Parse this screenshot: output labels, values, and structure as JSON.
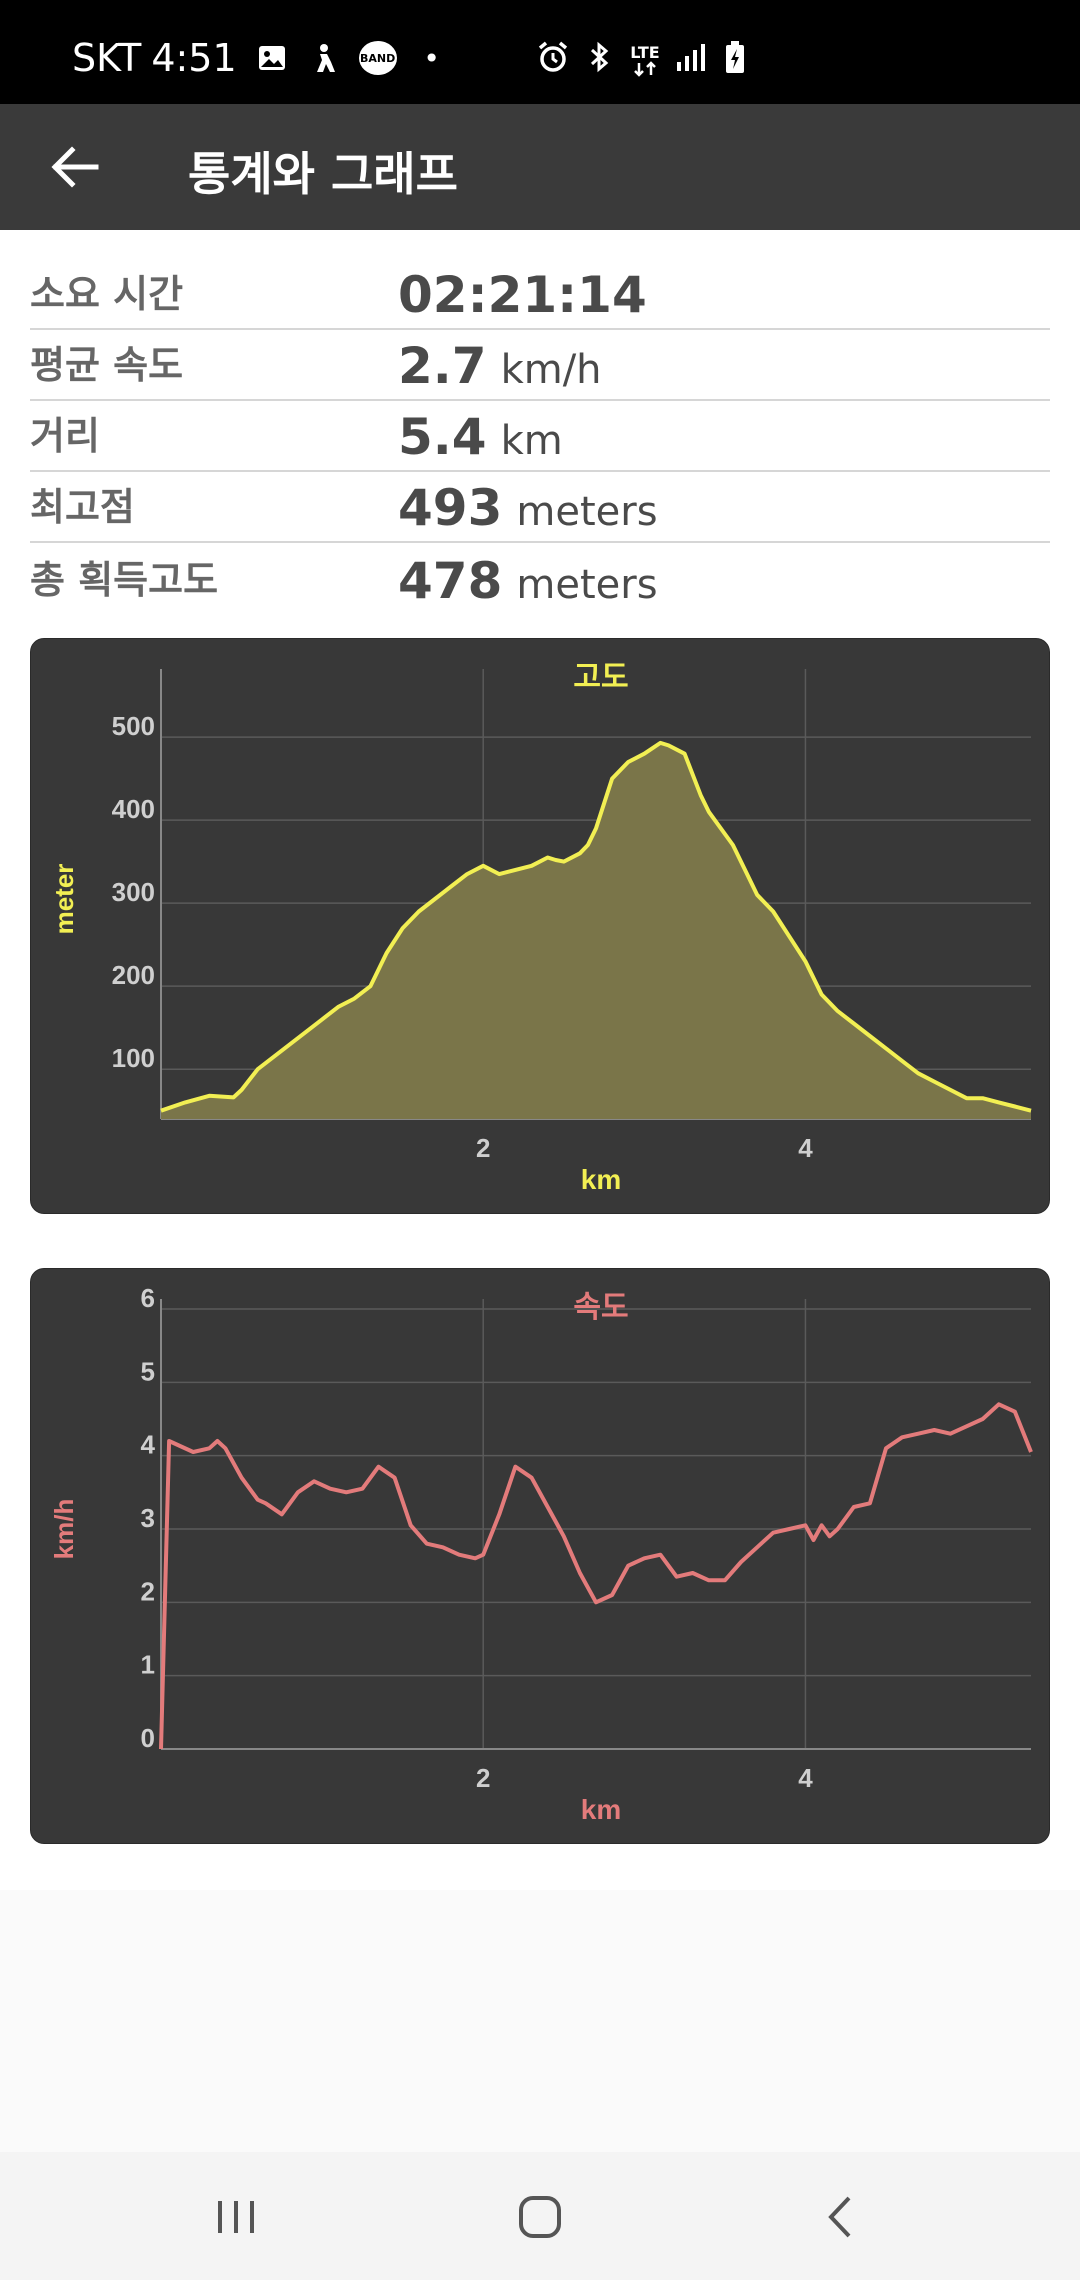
{
  "status_bar": {
    "carrier": "SKT",
    "time": "4:51",
    "band_label": "BAND",
    "dot": "•",
    "lte_label": "LTE",
    "left_icons": [
      "image-icon",
      "hiking-icon",
      "band-icon"
    ],
    "right_icons": [
      "alarm-icon",
      "bluetooth-icon",
      "lte-icon",
      "signal-icon",
      "battery-charging-icon"
    ]
  },
  "app_bar": {
    "title": "통계와 그래프",
    "back_icon": "arrow-left-icon"
  },
  "stats": [
    {
      "label": "소요 시간",
      "value": "02:21:14",
      "unit": ""
    },
    {
      "label": "평균 속도",
      "value": "2.7",
      "unit": "km/h"
    },
    {
      "label": "거리",
      "value": "5.4",
      "unit": "km"
    },
    {
      "label": "최고점",
      "value": "493",
      "unit": "meters"
    },
    {
      "label": "총 획득고도",
      "value": "478",
      "unit": "meters"
    }
  ],
  "colors": {
    "elevation_line": "#f2ef53",
    "elevation_fill": "#7a7549",
    "speed_line": "#e37b7b",
    "card_bg": "#383838",
    "grid": "#5a5a5a",
    "axis_text": "#cfcfcf"
  },
  "chart_data": [
    {
      "type": "area",
      "title": "고도",
      "xlabel": "km",
      "ylabel": "meter",
      "xlim": [
        0,
        5.4
      ],
      "ylim": [
        40,
        570
      ],
      "xticks": [
        2,
        4
      ],
      "yticks": [
        100,
        200,
        300,
        400,
        500
      ],
      "grid": true,
      "legend": "none",
      "series": [
        {
          "x": [
            0,
            0.15,
            0.3,
            0.45,
            0.5,
            0.6,
            0.8,
            1.0,
            1.1,
            1.2,
            1.3,
            1.4,
            1.5,
            1.6,
            1.7,
            1.8,
            1.9,
            2.0,
            2.1,
            2.2,
            2.3,
            2.4,
            2.45,
            2.5,
            2.6,
            2.65,
            2.7,
            2.8,
            2.9,
            3.0,
            3.1,
            3.15,
            3.25,
            3.35,
            3.4,
            3.55,
            3.65,
            3.7,
            3.8,
            3.9,
            4.0,
            4.1,
            4.2,
            4.3,
            4.4,
            4.5,
            4.6,
            4.7,
            4.8,
            4.9,
            5.0,
            5.1,
            5.2,
            5.3,
            5.4
          ],
          "y": [
            50,
            60,
            68,
            66,
            75,
            100,
            130,
            160,
            175,
            185,
            200,
            240,
            270,
            290,
            305,
            320,
            335,
            345,
            335,
            340,
            345,
            355,
            352,
            350,
            360,
            370,
            390,
            450,
            470,
            480,
            493,
            490,
            480,
            430,
            410,
            370,
            330,
            310,
            290,
            260,
            230,
            190,
            170,
            155,
            140,
            125,
            110,
            95,
            85,
            75,
            65,
            65,
            60,
            55,
            50
          ]
        }
      ]
    },
    {
      "type": "line",
      "title": "속도",
      "xlabel": "km",
      "ylabel": "km/h",
      "xlim": [
        0,
        5.4
      ],
      "ylim": [
        0,
        6
      ],
      "xticks": [
        2,
        4
      ],
      "yticks": [
        0,
        1,
        2,
        3,
        4,
        5,
        6
      ],
      "grid": true,
      "legend": "none",
      "series": [
        {
          "x": [
            0,
            0.05,
            0.2,
            0.3,
            0.35,
            0.4,
            0.5,
            0.6,
            0.65,
            0.75,
            0.85,
            0.95,
            1.05,
            1.15,
            1.25,
            1.35,
            1.45,
            1.55,
            1.65,
            1.75,
            1.85,
            1.95,
            2.0,
            2.1,
            2.2,
            2.3,
            2.4,
            2.5,
            2.6,
            2.7,
            2.8,
            2.9,
            3.0,
            3.1,
            3.2,
            3.3,
            3.4,
            3.5,
            3.6,
            3.7,
            3.8,
            3.9,
            4.0,
            4.05,
            4.1,
            4.15,
            4.2,
            4.3,
            4.4,
            4.5,
            4.6,
            4.7,
            4.8,
            4.9,
            5.0,
            5.1,
            5.2,
            5.3,
            5.4
          ],
          "y": [
            0,
            4.2,
            4.05,
            4.1,
            4.2,
            4.1,
            3.7,
            3.4,
            3.35,
            3.2,
            3.5,
            3.65,
            3.55,
            3.5,
            3.55,
            3.85,
            3.7,
            3.05,
            2.8,
            2.75,
            2.65,
            2.6,
            2.65,
            3.2,
            3.85,
            3.7,
            3.3,
            2.9,
            2.4,
            2.0,
            2.1,
            2.5,
            2.6,
            2.65,
            2.35,
            2.4,
            2.3,
            2.3,
            2.55,
            2.75,
            2.95,
            3.0,
            3.05,
            2.85,
            3.05,
            2.9,
            3.0,
            3.3,
            3.35,
            4.1,
            4.25,
            4.3,
            4.35,
            4.3,
            4.4,
            4.5,
            4.7,
            4.6,
            4.05
          ]
        }
      ]
    }
  ],
  "nav_bar": {
    "icons": [
      "recent-apps-icon",
      "home-icon",
      "back-nav-icon"
    ]
  }
}
